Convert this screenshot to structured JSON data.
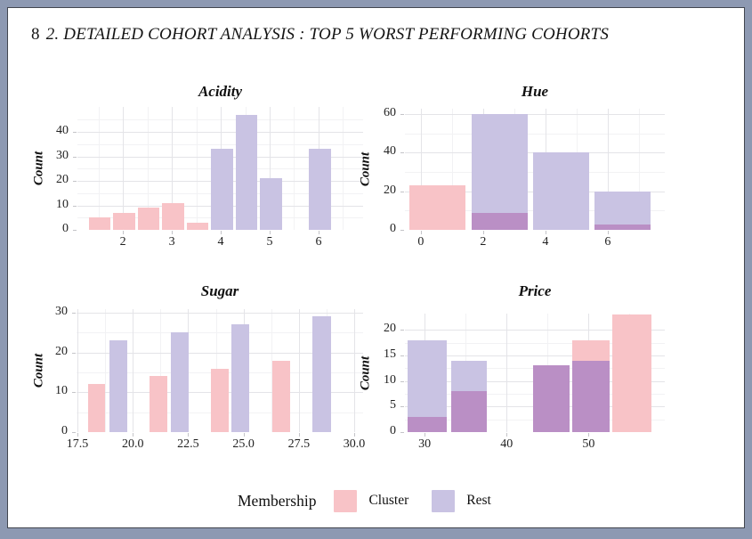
{
  "page": {
    "page_number": "8",
    "section_title": "2.  DETAILED COHORT ANALYSIS : TOP 5 WORST PERFORMING COHORTS"
  },
  "colors": {
    "frame_border": "#8d99b2",
    "page_background": "#ffffff",
    "page_outline": "#42464f",
    "cluster_fill": "#F8C3C7",
    "rest_fill": "#C9C3E3",
    "overlap_fill": "#BA8FC5",
    "grid_major": "#E4E4E8",
    "grid_minor": "#F2F2F4",
    "tick_text": "#1f1f1f"
  },
  "legend": {
    "title": "Membership",
    "items": [
      {
        "label": "Cluster",
        "color": "#F8C3C7"
      },
      {
        "label": "Rest",
        "color": "#C9C3E3"
      }
    ]
  },
  "chart_data": [
    {
      "type": "bar",
      "title": "Acidity",
      "ylabel": "Count",
      "xlim": [
        1.07,
        6.91
      ],
      "ylim": [
        0,
        50.2
      ],
      "xticks": [
        2,
        3,
        4,
        5,
        6
      ],
      "xtick_labels": [
        "2",
        "3",
        "4",
        "5",
        "6"
      ],
      "xminor": [
        1.5,
        2.5,
        3.5,
        4.5,
        5.5,
        6.5
      ],
      "yticks": [
        0,
        10,
        20,
        30,
        40
      ],
      "ytick_labels": [
        "0",
        "10",
        "20",
        "30",
        "40"
      ],
      "yminor": [
        5,
        15,
        25,
        35,
        45
      ],
      "series_names": [
        "Cluster",
        "Rest"
      ],
      "bars": [
        {
          "x0": 1.3,
          "x1": 1.75,
          "cluster": 5
        },
        {
          "x0": 1.8,
          "x1": 2.25,
          "cluster": 7
        },
        {
          "x0": 2.3,
          "x1": 2.75,
          "cluster": 9
        },
        {
          "x0": 2.8,
          "x1": 3.25,
          "cluster": 11
        },
        {
          "x0": 3.3,
          "x1": 3.75,
          "cluster": 3
        },
        {
          "x0": 3.8,
          "x1": 4.25,
          "rest": 33
        },
        {
          "x0": 4.3,
          "x1": 4.75,
          "rest": 47
        },
        {
          "x0": 4.8,
          "x1": 5.25,
          "rest": 21
        },
        {
          "x0": 5.8,
          "x1": 6.25,
          "rest": 33
        }
      ]
    },
    {
      "type": "bar",
      "title": "Hue",
      "ylabel": "Count",
      "xlim": [
        -0.51,
        7.83
      ],
      "ylim": [
        0,
        62.8
      ],
      "xticks": [
        0,
        2,
        4,
        6
      ],
      "xtick_labels": [
        "0",
        "2",
        "4",
        "6"
      ],
      "xminor": [
        1,
        3,
        5,
        7
      ],
      "yticks": [
        0,
        20,
        40,
        60
      ],
      "ytick_labels": [
        "0",
        "20",
        "40",
        "60"
      ],
      "yminor": [
        10,
        30,
        50
      ],
      "series_names": [
        "Cluster",
        "Rest"
      ],
      "bars": [
        {
          "x0": -0.37,
          "x1": 1.43,
          "cluster": 23
        },
        {
          "x0": 1.63,
          "x1": 3.43,
          "cluster": 9,
          "rest": 60
        },
        {
          "x0": 3.6,
          "x1": 5.4,
          "rest": 40
        },
        {
          "x0": 5.57,
          "x1": 7.37,
          "cluster": 3,
          "rest": 20
        }
      ]
    },
    {
      "type": "bar",
      "title": "Sugar",
      "ylabel": "Count",
      "xlim": [
        17.46,
        30.4
      ],
      "ylim": [
        0,
        30.9
      ],
      "xticks": [
        17.5,
        20.0,
        22.5,
        25.0,
        27.5,
        30.0
      ],
      "xtick_labels": [
        "17.5",
        "20.0",
        "22.5",
        "25.0",
        "27.5",
        "30.0"
      ],
      "xminor": [
        18.75,
        21.25,
        23.75,
        26.25,
        28.75
      ],
      "yticks": [
        0,
        10,
        20,
        30
      ],
      "ytick_labels": [
        "0",
        "10",
        "20",
        "30"
      ],
      "yminor": [
        5,
        15,
        25
      ],
      "series_names": [
        "Cluster",
        "Rest"
      ],
      "bars": [
        {
          "x0": 17.98,
          "x1": 18.75,
          "cluster": 12
        },
        {
          "x0": 18.95,
          "x1": 19.75,
          "rest": 23
        },
        {
          "x0": 20.75,
          "x1": 21.56,
          "cluster": 14
        },
        {
          "x0": 21.72,
          "x1": 22.52,
          "rest": 25
        },
        {
          "x0": 23.52,
          "x1": 24.33,
          "cluster": 16
        },
        {
          "x0": 24.45,
          "x1": 25.25,
          "rest": 27
        },
        {
          "x0": 26.3,
          "x1": 27.1,
          "cluster": 18
        },
        {
          "x0": 28.1,
          "x1": 28.95,
          "rest": 29
        }
      ]
    },
    {
      "type": "bar",
      "title": "Price",
      "ylabel": "Count",
      "xlim": [
        27.6,
        59.3
      ],
      "ylim": [
        0,
        23.2
      ],
      "xticks": [
        30,
        40,
        50
      ],
      "xtick_labels": [
        "30",
        "40",
        "50"
      ],
      "xminor": [
        35,
        45,
        55
      ],
      "yticks": [
        0,
        5,
        10,
        15,
        20
      ],
      "ytick_labels": [
        "0",
        "5",
        "10",
        "15",
        "20"
      ],
      "yminor": [
        2.5,
        7.5,
        12.5,
        17.5
      ],
      "series_names": [
        "Cluster",
        "Rest"
      ],
      "bars": [
        {
          "x0": 27.9,
          "x1": 32.7,
          "cluster": 3,
          "rest": 18
        },
        {
          "x0": 33.2,
          "x1": 37.6,
          "cluster": 8,
          "rest": 14
        },
        {
          "x0": 43.2,
          "x1": 47.7,
          "cluster": 13,
          "rest": 13
        },
        {
          "x0": 48.0,
          "x1": 52.6,
          "cluster": 18,
          "rest": 14
        },
        {
          "x0": 52.9,
          "x1": 57.7,
          "cluster": 23
        }
      ]
    }
  ]
}
